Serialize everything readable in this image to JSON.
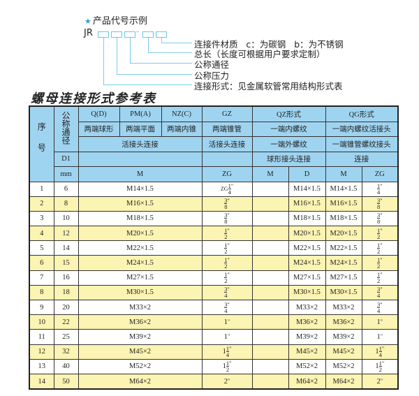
{
  "code_example": {
    "heading": "产品代号示例",
    "star_icon": "star-icon",
    "prefix": "JR",
    "separator": "-",
    "labels": [
      "连接件材质   c：为碳钢   b：为不锈钢",
      "总长（长度可根据用户要求定制）",
      "公称通径",
      "公称压力",
      "连接形式：见金属软管常用结构形式表"
    ]
  },
  "title": "螺母连接形式参考表",
  "table": {
    "header": {
      "seq": "序号",
      "nominal": "公称通径",
      "d1": "D1",
      "mm": "mm",
      "q": "Q(D)",
      "pm": "PM(A)",
      "nz": "NZ(C)",
      "gz": "GZ",
      "qz": "QZ形式",
      "qg": "QG形式",
      "q_desc": "两端球形",
      "pm_desc": "两端平面",
      "nz_desc": "两端内锥",
      "gz_desc": "两端锥管",
      "qz_desc1": "一端内螺纹",
      "qg_desc1": "一端内螺纹活接头",
      "union": "活接头连接",
      "gz_union": "活接头连接",
      "qz_desc2": "一端外螺纹",
      "qg_desc2": "一端锥管螺纹接头",
      "qz_desc3": "球形接头连接",
      "qg_desc3": "连接",
      "col_m": "M",
      "col_zg": "ZG",
      "col_qz_m": "M",
      "col_qz_d": "D",
      "col_qg_m": "M",
      "col_qg_zg": "ZG"
    },
    "rows": [
      {
        "no": "1",
        "dn": "6",
        "m": "M14×1.5",
        "zg": {
          "pre": "ZG",
          "w": "",
          "n": "1",
          "d": "4"
        },
        "qz_d": "M14×1.5",
        "qg_m": "M14×1.5",
        "qg_zg": {
          "w": "",
          "n": "1",
          "d": "4"
        }
      },
      {
        "no": "2",
        "dn": "8",
        "m": "M16×1.5",
        "zg": {
          "w": "",
          "n": "3",
          "d": "8"
        },
        "qz_d": "M16×1.5",
        "qg_m": "M16×1.5",
        "qg_zg": {
          "w": "",
          "n": "3",
          "d": "8"
        }
      },
      {
        "no": "3",
        "dn": "10",
        "m": "M18×1.5",
        "zg": {
          "w": "",
          "n": "3",
          "d": "8"
        },
        "qz_d": "M18×1.5",
        "qg_m": "M18×1.5",
        "qg_zg": {
          "w": "",
          "n": "3",
          "d": "8"
        }
      },
      {
        "no": "4",
        "dn": "12",
        "m": "M20×1.5",
        "zg": {
          "w": "",
          "n": "1",
          "d": "2"
        },
        "qz_d": "M20×1.5",
        "qg_m": "M20×1.5",
        "qg_zg": {
          "w": "",
          "n": "1",
          "d": "2"
        }
      },
      {
        "no": "5",
        "dn": "14",
        "m": "M22×1.5",
        "zg": {
          "w": "",
          "n": "1",
          "d": "2"
        },
        "qz_d": "M22×1.5",
        "qg_m": "M22×1.5",
        "qg_zg": {
          "w": "",
          "n": "1",
          "d": "2"
        }
      },
      {
        "no": "6",
        "dn": "15",
        "m": "M24×1.5",
        "zg": {
          "w": "",
          "n": "1",
          "d": "2"
        },
        "qz_d": "M24×1.5",
        "qg_m": "M24×1.5",
        "qg_zg": {
          "w": "",
          "n": "1",
          "d": "2"
        }
      },
      {
        "no": "7",
        "dn": "16",
        "m": "M27×1.5",
        "zg": {
          "w": "",
          "n": "1",
          "d": "2"
        },
        "qz_d": "M27×1.5",
        "qg_m": "M27×1.5",
        "qg_zg": {
          "w": "",
          "n": "1",
          "d": "2"
        }
      },
      {
        "no": "8",
        "dn": "18",
        "m": "M30×1.5",
        "zg": {
          "w": "",
          "n": "3",
          "d": "4"
        },
        "qz_d": "M30×1.5",
        "qg_m": "M30×1.5",
        "qg_zg": {
          "w": "",
          "n": "3",
          "d": "4"
        }
      },
      {
        "no": "9",
        "dn": "20",
        "m": "M33×2",
        "zg": {
          "w": "",
          "n": "3",
          "d": "4"
        },
        "qz_d": "M33×2",
        "qg_m": "M33×2",
        "qg_zg": {
          "w": "",
          "n": "3",
          "d": "4"
        }
      },
      {
        "no": "10",
        "dn": "22",
        "m": "M36×2",
        "zg": {
          "w": "1"
        },
        "qz_d": "M36×2",
        "qg_m": "M36×2",
        "qg_zg": {
          "w": "1"
        }
      },
      {
        "no": "11",
        "dn": "25",
        "m": "M39×2",
        "zg": {
          "w": "1"
        },
        "qz_d": "M39×2",
        "qg_m": "M39×2",
        "qg_zg": {
          "w": "1"
        }
      },
      {
        "no": "12",
        "dn": "32",
        "m": "M45×2",
        "zg": {
          "w": "1",
          "n": "1",
          "d": "4"
        },
        "qz_d": "M45×2",
        "qg_m": "M45×2",
        "qg_zg": {
          "w": "1",
          "n": "1",
          "d": "4"
        }
      },
      {
        "no": "13",
        "dn": "40",
        "m": "M52×2",
        "zg": {
          "w": "1",
          "n": "1",
          "d": "2"
        },
        "qz_d": "M52×2",
        "qg_m": "M52×2",
        "qg_zg": {
          "w": "1",
          "n": "1",
          "d": "2"
        }
      },
      {
        "no": "14",
        "dn": "50",
        "m": "M64×2",
        "zg": {
          "w": "2"
        },
        "qz_d": "M64×2",
        "qg_m": "M64×2",
        "qg_zg": {
          "w": "2"
        }
      }
    ],
    "colors": {
      "header_bg": "#9fd4f1",
      "stripe_bg": "#fbf4b2",
      "accent": "#2aa0d8"
    }
  }
}
